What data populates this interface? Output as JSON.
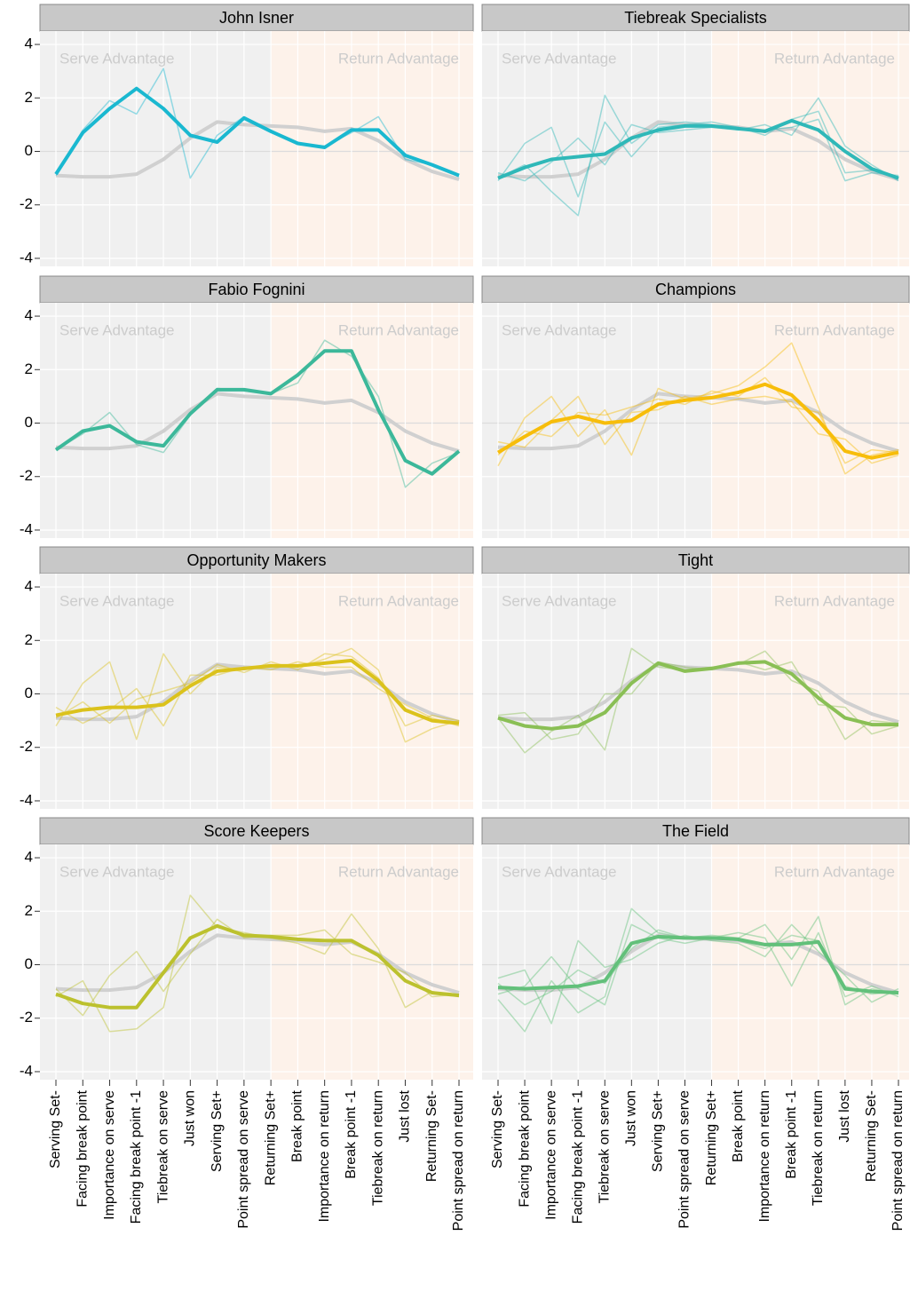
{
  "chart_data": [
    {
      "type": "line",
      "title": "John Isner",
      "annotations": [
        "Serve Advantage",
        "Return Advantage"
      ],
      "categories": [
        "Serving Set-",
        "Facing break point",
        "Importance on serve",
        "Facing break point -1",
        "Tiebreak on serve",
        "Just won",
        "Serving Set+",
        "Point spread on serve",
        "Returning Set+",
        "Break point",
        "Importance on return",
        "Break point -1",
        "Tiebreak on return",
        "Just lost",
        "Returning Set-",
        "Point spread on return"
      ],
      "ylim": [
        -4.3,
        4.5
      ],
      "yticks": [
        -4,
        -2,
        0,
        2,
        4
      ],
      "reference_line": {
        "color": "#d0d0d0",
        "values": [
          -0.9,
          -0.95,
          -0.95,
          -0.85,
          -0.3,
          0.5,
          1.1,
          1.0,
          0.95,
          0.9,
          0.75,
          0.85,
          0.4,
          -0.3,
          -0.75,
          -1.05
        ]
      },
      "individual_lines": [
        {
          "color": "#1ab8d0",
          "values": [
            -0.9,
            0.8,
            1.9,
            1.4,
            3.1,
            -1.0,
            0.6,
            1.3,
            0.8,
            0.3,
            0.2,
            0.7,
            1.3,
            -0.3,
            -0.5,
            -0.95
          ]
        }
      ],
      "series": [
        {
          "color": "#1ab8d0",
          "values": [
            -0.85,
            0.7,
            1.6,
            2.35,
            1.6,
            0.6,
            0.35,
            1.25,
            0.75,
            0.3,
            0.15,
            0.8,
            0.8,
            -0.15,
            -0.5,
            -0.9
          ]
        }
      ]
    },
    {
      "type": "line",
      "title": "Tiebreak Specialists",
      "annotations": [
        "Serve Advantage",
        "Return Advantage"
      ],
      "categories": [
        "Serving Set-",
        "Facing break point",
        "Importance on serve",
        "Facing break point -1",
        "Tiebreak on serve",
        "Just won",
        "Serving Set+",
        "Point spread on serve",
        "Returning Set+",
        "Break point",
        "Importance on return",
        "Break point -1",
        "Tiebreak on return",
        "Just lost",
        "Returning Set-",
        "Point spread on return"
      ],
      "ylim": [
        -4.3,
        4.5
      ],
      "yticks": [
        -4,
        -2,
        0,
        2,
        4
      ],
      "reference_line": {
        "color": "#d0d0d0",
        "values": [
          -0.9,
          -0.95,
          -0.95,
          -0.85,
          -0.3,
          0.5,
          1.1,
          1.0,
          0.95,
          0.9,
          0.75,
          0.85,
          0.4,
          -0.3,
          -0.75,
          -1.05
        ]
      },
      "individual_lines": [
        {
          "color": "#2fb8b8",
          "values": [
            -1.1,
            0.3,
            0.9,
            -1.7,
            1.1,
            -0.2,
            0.9,
            1.0,
            1.1,
            0.9,
            0.6,
            1.2,
            1.5,
            -0.8,
            -0.7,
            -1.0
          ]
        },
        {
          "color": "#2fb8b8",
          "values": [
            -0.8,
            -1.1,
            -0.4,
            0.5,
            -0.5,
            1.0,
            0.7,
            0.8,
            0.9,
            0.8,
            1.0,
            0.6,
            2.0,
            0.2,
            -0.5,
            -1.1
          ]
        },
        {
          "color": "#2fb8b8",
          "values": [
            -1.0,
            -0.5,
            -1.5,
            -2.4,
            2.1,
            0.3,
            1.0,
            1.1,
            1.0,
            0.8,
            0.8,
            0.9,
            1.2,
            -1.1,
            -0.8,
            -0.9
          ]
        }
      ],
      "series": [
        {
          "color": "#2fb8b8",
          "values": [
            -1.0,
            -0.6,
            -0.3,
            -0.2,
            -0.1,
            0.5,
            0.8,
            0.95,
            0.95,
            0.85,
            0.75,
            1.15,
            0.8,
            0.0,
            -0.65,
            -1.0
          ]
        }
      ]
    },
    {
      "type": "line",
      "title": "Fabio Fognini",
      "annotations": [
        "Serve Advantage",
        "Return Advantage"
      ],
      "categories": [
        "Serving Set-",
        "Facing break point",
        "Importance on serve",
        "Facing break point -1",
        "Tiebreak on serve",
        "Just won",
        "Serving Set+",
        "Point spread on serve",
        "Returning Set+",
        "Break point",
        "Importance on return",
        "Break point -1",
        "Tiebreak on return",
        "Just lost",
        "Returning Set-",
        "Point spread on return"
      ],
      "ylim": [
        -4.3,
        4.5
      ],
      "yticks": [
        -4,
        -2,
        0,
        2,
        4
      ],
      "reference_line": {
        "color": "#d0d0d0",
        "values": [
          -0.9,
          -0.95,
          -0.95,
          -0.85,
          -0.3,
          0.5,
          1.1,
          1.0,
          0.95,
          0.9,
          0.75,
          0.85,
          0.4,
          -0.3,
          -0.75,
          -1.05
        ]
      },
      "individual_lines": [
        {
          "color": "#3cb89a",
          "values": [
            -1.0,
            -0.4,
            0.4,
            -0.8,
            -1.1,
            0.3,
            1.3,
            1.2,
            1.1,
            1.5,
            3.1,
            2.5,
            1.0,
            -2.4,
            -1.5,
            -1.1
          ]
        }
      ],
      "series": [
        {
          "color": "#3cb89a",
          "values": [
            -1.0,
            -0.3,
            -0.1,
            -0.7,
            -0.85,
            0.35,
            1.25,
            1.25,
            1.1,
            1.8,
            2.7,
            2.7,
            0.5,
            -1.4,
            -1.9,
            -1.05
          ]
        }
      ]
    },
    {
      "type": "line",
      "title": "Champions",
      "annotations": [
        "Serve Advantage",
        "Return Advantage"
      ],
      "categories": [
        "Serving Set-",
        "Facing break point",
        "Importance on serve",
        "Facing break point -1",
        "Tiebreak on serve",
        "Just won",
        "Serving Set+",
        "Point spread on serve",
        "Returning Set+",
        "Break point",
        "Importance on return",
        "Break point -1",
        "Tiebreak on return",
        "Just lost",
        "Returning Set-",
        "Point spread on return"
      ],
      "ylim": [
        -4.3,
        4.5
      ],
      "yticks": [
        -4,
        -2,
        0,
        2,
        4
      ],
      "reference_line": {
        "color": "#d0d0d0",
        "values": [
          -0.9,
          -0.95,
          -0.95,
          -0.85,
          -0.3,
          0.5,
          1.1,
          1.0,
          0.95,
          0.9,
          0.75,
          0.85,
          0.4,
          -0.3,
          -0.75,
          -1.05
        ]
      },
      "individual_lines": [
        {
          "color": "#f7bd0a",
          "values": [
            -1.6,
            0.2,
            1.0,
            -0.5,
            0.5,
            -1.2,
            1.3,
            0.9,
            1.1,
            1.4,
            2.1,
            3.0,
            0.6,
            -1.9,
            -1.2,
            -1.0
          ]
        },
        {
          "color": "#f7bd0a",
          "values": [
            -0.7,
            -0.9,
            0.1,
            1.0,
            -0.8,
            0.4,
            0.5,
            1.0,
            0.7,
            0.9,
            1.0,
            0.8,
            -0.4,
            -0.6,
            -1.5,
            -1.2
          ]
        },
        {
          "color": "#f7bd0a",
          "values": [
            -1.2,
            -0.3,
            -0.5,
            0.4,
            0.3,
            0.6,
            0.9,
            0.7,
            1.2,
            1.0,
            1.7,
            0.6,
            0.4,
            -1.5,
            -1.0,
            -1.1
          ]
        }
      ],
      "series": [
        {
          "color": "#f7bd0a",
          "values": [
            -1.1,
            -0.5,
            0.05,
            0.25,
            0.0,
            0.1,
            0.7,
            0.85,
            0.95,
            1.15,
            1.45,
            1.05,
            0.1,
            -1.05,
            -1.3,
            -1.1
          ]
        }
      ]
    },
    {
      "type": "line",
      "title": "Opportunity Makers",
      "annotations": [
        "Serve Advantage",
        "Return Advantage"
      ],
      "categories": [
        "Serving Set-",
        "Facing break point",
        "Importance on serve",
        "Facing break point -1",
        "Tiebreak on serve",
        "Just won",
        "Serving Set+",
        "Point spread on serve",
        "Returning Set+",
        "Break point",
        "Importance on return",
        "Break point -1",
        "Tiebreak on return",
        "Just lost",
        "Returning Set-",
        "Point spread on return"
      ],
      "ylim": [
        -4.3,
        4.5
      ],
      "yticks": [
        -4,
        -2,
        0,
        2,
        4
      ],
      "reference_line": {
        "color": "#d0d0d0",
        "values": [
          -0.9,
          -0.95,
          -0.95,
          -0.85,
          -0.3,
          0.5,
          1.1,
          1.0,
          0.95,
          0.9,
          0.75,
          0.85,
          0.4,
          -0.3,
          -0.75,
          -1.05
        ]
      },
      "individual_lines": [
        {
          "color": "#dbc21c",
          "values": [
            -1.2,
            0.4,
            1.2,
            -1.7,
            1.5,
            0.0,
            1.0,
            0.9,
            1.1,
            1.0,
            1.3,
            1.7,
            0.9,
            -1.8,
            -1.3,
            -1.0
          ]
        },
        {
          "color": "#dbc21c",
          "values": [
            -0.5,
            -1.1,
            -0.6,
            0.2,
            -1.2,
            0.7,
            0.7,
            1.0,
            0.9,
            1.2,
            1.0,
            1.0,
            0.2,
            -0.4,
            -0.9,
            -1.2
          ]
        },
        {
          "color": "#dbc21c",
          "values": [
            -0.9,
            -0.3,
            -1.1,
            -0.2,
            0.1,
            0.4,
            1.1,
            0.8,
            1.2,
            0.9,
            1.5,
            1.4,
            0.6,
            -1.2,
            -0.8,
            -1.0
          ]
        }
      ],
      "series": [
        {
          "color": "#dbc21c",
          "values": [
            -0.8,
            -0.6,
            -0.5,
            -0.5,
            -0.4,
            0.3,
            0.85,
            0.95,
            1.05,
            1.05,
            1.15,
            1.25,
            0.5,
            -0.6,
            -1.0,
            -1.1
          ]
        }
      ]
    },
    {
      "type": "line",
      "title": "Tight",
      "annotations": [
        "Serve Advantage",
        "Return Advantage"
      ],
      "categories": [
        "Serving Set-",
        "Facing break point",
        "Importance on serve",
        "Facing break point -1",
        "Tiebreak on serve",
        "Just won",
        "Serving Set+",
        "Point spread on serve",
        "Returning Set+",
        "Break point",
        "Importance on return",
        "Break point -1",
        "Tiebreak on return",
        "Just lost",
        "Returning Set-",
        "Point spread on return"
      ],
      "ylim": [
        -4.3,
        4.5
      ],
      "yticks": [
        -4,
        -2,
        0,
        2,
        4
      ],
      "reference_line": {
        "color": "#d0d0d0",
        "values": [
          -0.9,
          -0.95,
          -0.95,
          -0.85,
          -0.3,
          0.5,
          1.1,
          1.0,
          0.95,
          0.9,
          0.75,
          0.85,
          0.4,
          -0.3,
          -0.75,
          -1.05
        ]
      },
      "individual_lines": [
        {
          "color": "#8abf55",
          "values": [
            -0.9,
            -2.2,
            -1.4,
            -0.8,
            -2.1,
            1.7,
            1.0,
            0.9,
            1.0,
            1.1,
            1.6,
            0.5,
            0.1,
            -1.7,
            -1.0,
            -1.1
          ]
        },
        {
          "color": "#8abf55",
          "values": [
            -0.8,
            -0.7,
            -1.7,
            -1.5,
            0.0,
            0.0,
            1.2,
            1.0,
            0.9,
            1.2,
            0.9,
            1.2,
            -0.4,
            -0.5,
            -1.5,
            -1.2
          ]
        }
      ],
      "series": [
        {
          "color": "#8abf55",
          "values": [
            -0.9,
            -1.2,
            -1.3,
            -1.2,
            -0.7,
            0.4,
            1.15,
            0.85,
            0.95,
            1.15,
            1.2,
            0.75,
            -0.15,
            -0.9,
            -1.15,
            -1.15
          ]
        }
      ]
    },
    {
      "type": "line",
      "title": "Score Keepers",
      "annotations": [
        "Serve Advantage",
        "Return Advantage"
      ],
      "categories": [
        "Serving Set-",
        "Facing break point",
        "Importance on serve",
        "Facing break point -1",
        "Tiebreak on serve",
        "Just won",
        "Serving Set+",
        "Point spread on serve",
        "Returning Set+",
        "Break point",
        "Importance on return",
        "Break point -1",
        "Tiebreak on return",
        "Just lost",
        "Returning Set-",
        "Point spread on return"
      ],
      "ylim": [
        -4.3,
        4.5
      ],
      "yticks": [
        -4,
        -2,
        0,
        2,
        4
      ],
      "reference_line": {
        "color": "#d0d0d0",
        "values": [
          -0.9,
          -0.95,
          -0.95,
          -0.85,
          -0.3,
          0.5,
          1.1,
          1.0,
          0.95,
          0.9,
          0.75,
          0.85,
          0.4,
          -0.3,
          -0.75,
          -1.05
        ]
      },
      "individual_lines": [
        {
          "color": "#bcc12e",
          "values": [
            -1.2,
            -0.6,
            -2.5,
            -2.4,
            -1.6,
            2.6,
            1.4,
            1.2,
            1.0,
            0.8,
            0.4,
            1.9,
            0.6,
            -1.6,
            -1.0,
            -1.2
          ]
        },
        {
          "color": "#bcc12e",
          "values": [
            -0.9,
            -1.9,
            -0.4,
            0.5,
            -1.0,
            0.4,
            1.7,
            1.0,
            1.1,
            1.1,
            1.3,
            0.4,
            0.1,
            -0.3,
            -1.2,
            -1.1
          ]
        }
      ],
      "series": [
        {
          "color": "#bcc12e",
          "values": [
            -1.1,
            -1.45,
            -1.6,
            -1.6,
            -0.3,
            1.0,
            1.45,
            1.1,
            1.05,
            0.95,
            0.9,
            0.9,
            0.35,
            -0.6,
            -1.05,
            -1.15
          ]
        }
      ]
    },
    {
      "type": "line",
      "title": "The Field",
      "annotations": [
        "Serve Advantage",
        "Return Advantage"
      ],
      "categories": [
        "Serving Set-",
        "Facing break point",
        "Importance on serve",
        "Facing break point -1",
        "Tiebreak on serve",
        "Just won",
        "Serving Set+",
        "Point spread on serve",
        "Returning Set+",
        "Break point",
        "Importance on return",
        "Break point -1",
        "Tiebreak on return",
        "Just lost",
        "Returning Set-",
        "Point spread on return"
      ],
      "ylim": [
        -4.3,
        4.5
      ],
      "yticks": [
        -4,
        -2,
        0,
        2,
        4
      ],
      "reference_line": {
        "color": "#d0d0d0",
        "values": [
          -0.9,
          -0.95,
          -0.95,
          -0.85,
          -0.3,
          0.5,
          1.1,
          1.0,
          0.95,
          0.9,
          0.75,
          0.85,
          0.4,
          -0.3,
          -0.75,
          -1.05
        ]
      },
      "individual_lines": [
        {
          "color": "#62c07a",
          "values": [
            -1.3,
            -2.5,
            -0.6,
            -1.8,
            -1.2,
            2.1,
            1.2,
            1.0,
            1.1,
            1.0,
            1.5,
            0.2,
            1.8,
            -1.5,
            -0.9,
            -1.1
          ]
        },
        {
          "color": "#62c07a",
          "values": [
            -0.5,
            -0.2,
            -2.2,
            0.9,
            -0.1,
            0.2,
            0.8,
            1.1,
            0.9,
            0.8,
            0.3,
            1.5,
            0.5,
            -0.4,
            -1.4,
            -0.9
          ]
        },
        {
          "color": "#62c07a",
          "values": [
            -1.1,
            -0.8,
            0.3,
            -0.9,
            -1.5,
            1.5,
            1.0,
            0.8,
            1.0,
            1.2,
            1.0,
            -0.8,
            1.2,
            -1.2,
            -0.8,
            -1.2
          ]
        },
        {
          "color": "#62c07a",
          "values": [
            -0.7,
            -1.5,
            -1.0,
            -0.2,
            -0.7,
            0.6,
            1.3,
            1.0,
            1.0,
            0.9,
            0.6,
            1.1,
            0.9,
            -0.8,
            -1.1,
            -1.0
          ]
        }
      ],
      "series": [
        {
          "color": "#62c07a",
          "values": [
            -0.85,
            -0.9,
            -0.85,
            -0.8,
            -0.6,
            0.8,
            1.05,
            1.0,
            1.0,
            0.95,
            0.75,
            0.75,
            0.85,
            -0.9,
            -1.0,
            -1.05
          ]
        }
      ]
    }
  ]
}
